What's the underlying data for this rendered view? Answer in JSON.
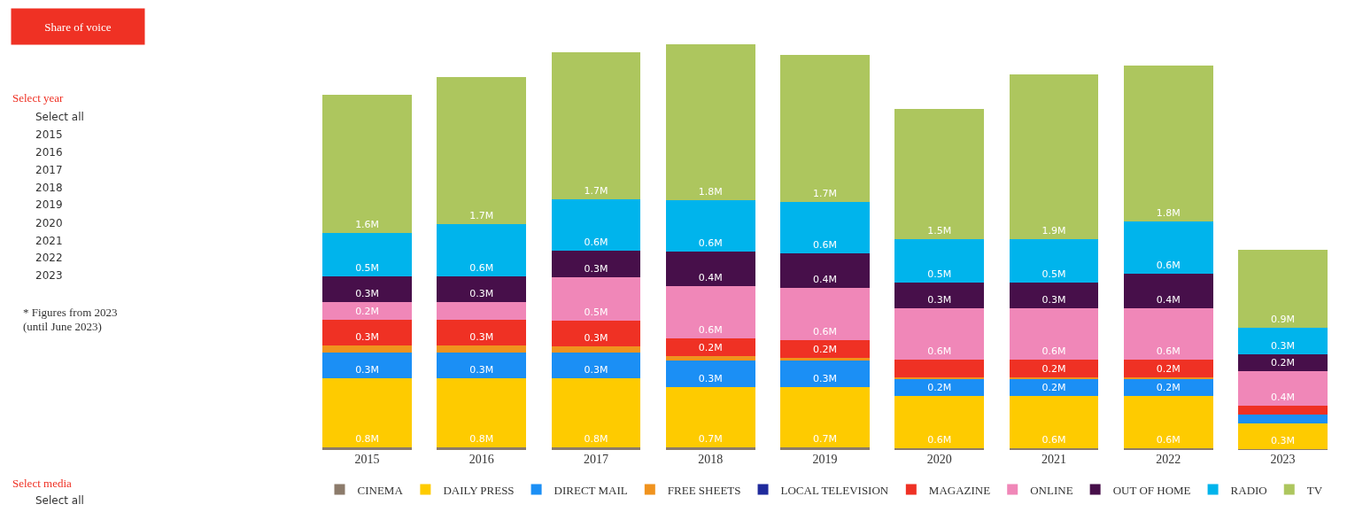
{
  "chart_data": {
    "type": "bar",
    "stacked": true,
    "title": "Share of voice",
    "categories": [
      "2015",
      "2016",
      "2017",
      "2018",
      "2019",
      "2020",
      "2021",
      "2022",
      "2023"
    ],
    "series": [
      {
        "name": "CINEMA",
        "color": "#8c7b6b",
        "values": [
          0.03,
          0.03,
          0.03,
          0.03,
          0.03,
          0.02,
          0.02,
          0.02,
          0.01
        ],
        "value_labels": [
          null,
          null,
          null,
          null,
          null,
          null,
          null,
          null,
          null
        ]
      },
      {
        "name": "DAILY PRESS",
        "color": "#fecb00",
        "values": [
          0.8,
          0.8,
          0.8,
          0.7,
          0.7,
          0.6,
          0.6,
          0.6,
          0.3
        ],
        "value_labels": [
          "0.8M",
          "0.8M",
          "0.8M",
          "0.7M",
          "0.7M",
          "0.6M",
          "0.6M",
          "0.6M",
          "0.3M"
        ]
      },
      {
        "name": "DIRECT MAIL",
        "color": "#1b8ff5",
        "values": [
          0.3,
          0.3,
          0.3,
          0.3,
          0.3,
          0.2,
          0.2,
          0.2,
          0.1
        ],
        "value_labels": [
          "0.3M",
          "0.3M",
          "0.3M",
          "0.3M",
          "0.3M",
          "0.2M",
          "0.2M",
          "0.2M",
          null
        ]
      },
      {
        "name": "FREE SHEETS",
        "color": "#f0931e",
        "values": [
          0.08,
          0.08,
          0.07,
          0.06,
          0.04,
          0.02,
          0.02,
          0.02,
          null
        ],
        "value_labels": [
          null,
          null,
          null,
          null,
          null,
          null,
          null,
          null,
          null
        ]
      },
      {
        "name": "LOCAL TELEVISION",
        "color": "#1f2a9c",
        "values": [
          null,
          null,
          null,
          0,
          0,
          0,
          0,
          0,
          0
        ],
        "value_labels": [
          null,
          null,
          null,
          null,
          null,
          null,
          null,
          null,
          null
        ]
      },
      {
        "name": "MAGAZINE",
        "color": "#ef3124",
        "values": [
          0.3,
          0.3,
          0.3,
          0.2,
          0.2,
          0.2,
          0.2,
          0.2,
          0.1
        ],
        "value_labels": [
          "0.3M",
          "0.3M",
          "0.3M",
          "0.2M",
          "0.2M",
          null,
          "0.2M",
          "0.2M",
          null
        ]
      },
      {
        "name": "ONLINE",
        "color": "#f087b8",
        "values": [
          0.2,
          0.2,
          0.5,
          0.6,
          0.6,
          0.6,
          0.6,
          0.6,
          0.4
        ],
        "value_labels": [
          "0.2M",
          null,
          "0.5M",
          "0.6M",
          "0.6M",
          "0.6M",
          "0.6M",
          "0.6M",
          "0.4M"
        ]
      },
      {
        "name": "OUT OF HOME",
        "color": "#470f4a",
        "values": [
          0.3,
          0.3,
          0.3,
          0.4,
          0.4,
          0.3,
          0.3,
          0.4,
          0.2
        ],
        "value_labels": [
          "0.3M",
          "0.3M",
          "0.3M",
          "0.4M",
          "0.4M",
          "0.3M",
          "0.3M",
          "0.4M",
          "0.2M"
        ]
      },
      {
        "name": "RADIO",
        "color": "#00b4ec",
        "values": [
          0.5,
          0.6,
          0.6,
          0.6,
          0.6,
          0.5,
          0.5,
          0.6,
          0.3
        ],
        "value_labels": [
          "0.5M",
          "0.6M",
          "0.6M",
          "0.6M",
          "0.6M",
          "0.5M",
          "0.5M",
          "0.6M",
          "0.3M"
        ]
      },
      {
        "name": "TV",
        "color": "#adc65e",
        "values": [
          1.6,
          1.7,
          1.7,
          1.8,
          1.7,
          1.5,
          1.9,
          1.8,
          0.9
        ],
        "value_labels": [
          "1.6M",
          "1.7M",
          "1.7M",
          "1.8M",
          "1.7M",
          "1.5M",
          "1.9M",
          "1.8M",
          "0.9M"
        ]
      }
    ],
    "legend": "bottom",
    "annotations": [
      "Select year",
      "Select all",
      "2015",
      "2016",
      "2017",
      "2018",
      "2019",
      "2020",
      "2021",
      "2022",
      "2023",
      "* Figures from 2023",
      "(until June 2023)",
      "Select media",
      "Select all"
    ]
  }
}
